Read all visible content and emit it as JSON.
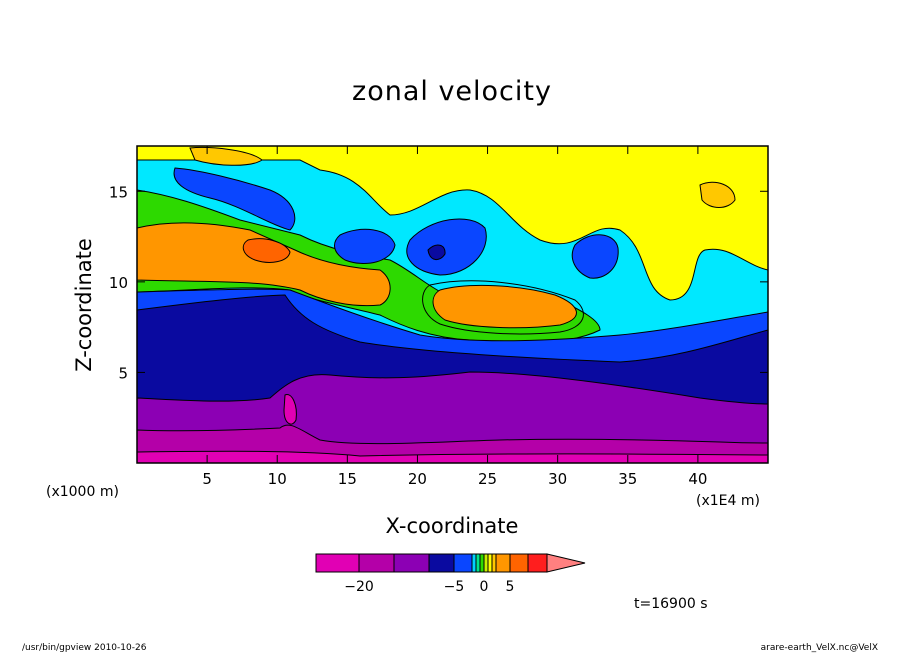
{
  "chart_data": {
    "type": "heatmap",
    "title": "zonal velocity",
    "xlabel": "X-coordinate",
    "ylabel": "Z-coordinate",
    "x_unit": "(x1000 m)",
    "x_unit_right": "(x1E4 m)",
    "x_ticks": [
      5,
      10,
      15,
      20,
      25,
      30,
      35,
      40
    ],
    "y_ticks": [
      5,
      10,
      15
    ],
    "xlim": [
      0,
      45
    ],
    "ylim": [
      0,
      17.5
    ],
    "colorbar": {
      "ticks": [
        -20,
        -5,
        0,
        5
      ],
      "levels": [
        -25,
        -20,
        -15,
        -10,
        -5,
        -2.5,
        -1,
        -0.5,
        0,
        0.5,
        1,
        2.5,
        5,
        10,
        15
      ],
      "colors": [
        "#e100b4",
        "#b400a8",
        "#8c00b4",
        "#0a0aa0",
        "#0a46ff",
        "#00d2ff",
        "#00e38c",
        "#2dd900",
        "#c8f000",
        "#ffff00",
        "#ffc800",
        "#ff9600",
        "#ff6400",
        "#ff1e1e",
        "#ff8080"
      ]
    },
    "annotation": "t=16900 s",
    "footer_left": "/usr/bin/gpview   2010-10-26",
    "footer_right": "arare-earth_VelX.nc@VelX"
  }
}
